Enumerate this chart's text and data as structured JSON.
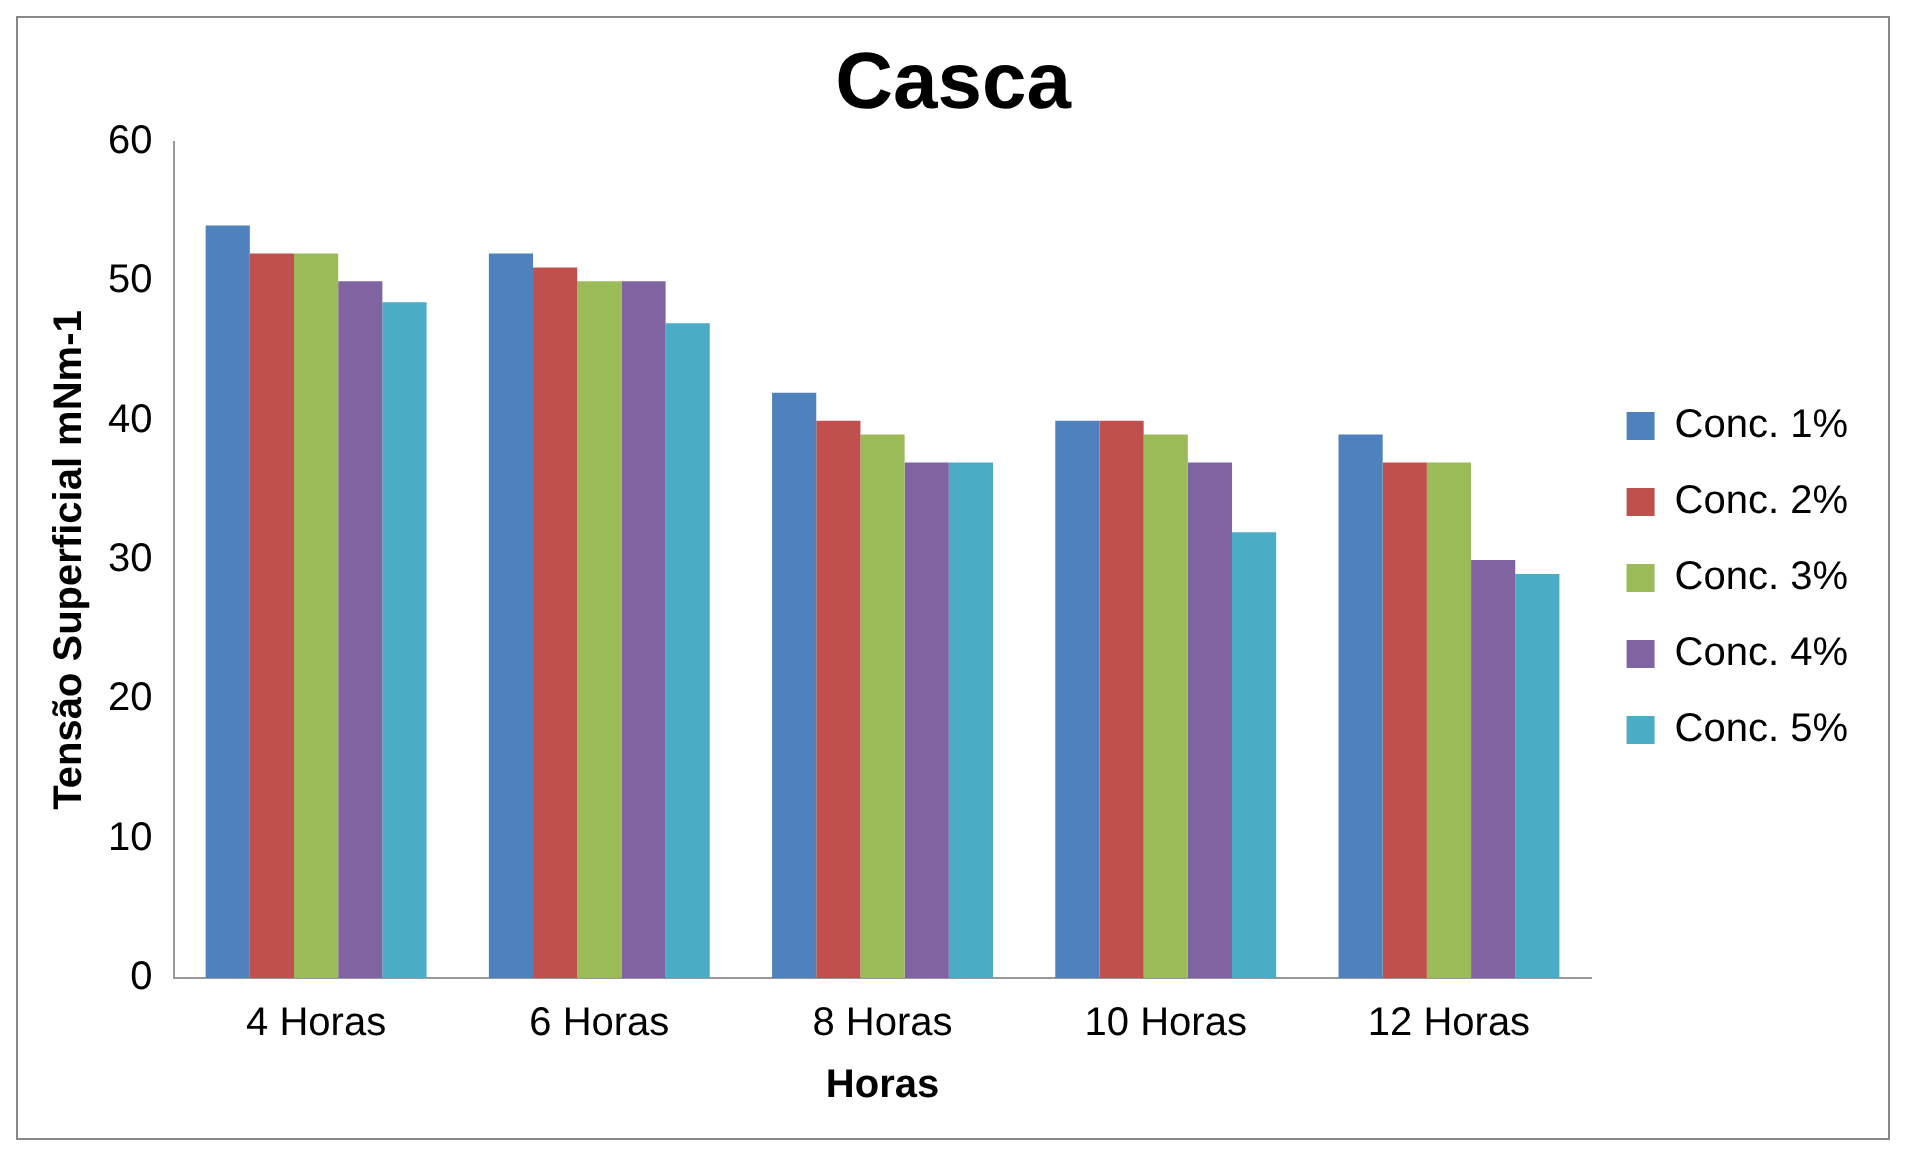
{
  "chart_data": {
    "type": "bar",
    "title": "Casca",
    "xlabel": "Horas",
    "ylabel": "Tensão Superficial mNm-1",
    "categories": [
      "4 Horas",
      "6 Horas",
      "8 Horas",
      "10 Horas",
      "12 Horas"
    ],
    "series": [
      {
        "name": "Conc. 1%",
        "color": "#4f81bd",
        "values": [
          54,
          52,
          42,
          40,
          39
        ]
      },
      {
        "name": "Conc. 2%",
        "color": "#c0504d",
        "values": [
          52,
          51,
          40,
          40,
          37
        ]
      },
      {
        "name": "Conc. 3%",
        "color": "#9bbb59",
        "values": [
          52,
          50,
          39,
          39,
          37
        ]
      },
      {
        "name": "Conc. 4%",
        "color": "#8064a2",
        "values": [
          50,
          50,
          37,
          37,
          30
        ]
      },
      {
        "name": "Conc. 5%",
        "color": "#4bacc6",
        "values": [
          48.5,
          47,
          37,
          32,
          29
        ]
      }
    ],
    "ylim": [
      0,
      60
    ],
    "yticks": [
      0,
      10,
      20,
      30,
      40,
      50,
      60
    ],
    "grid": false,
    "legend": "right"
  }
}
